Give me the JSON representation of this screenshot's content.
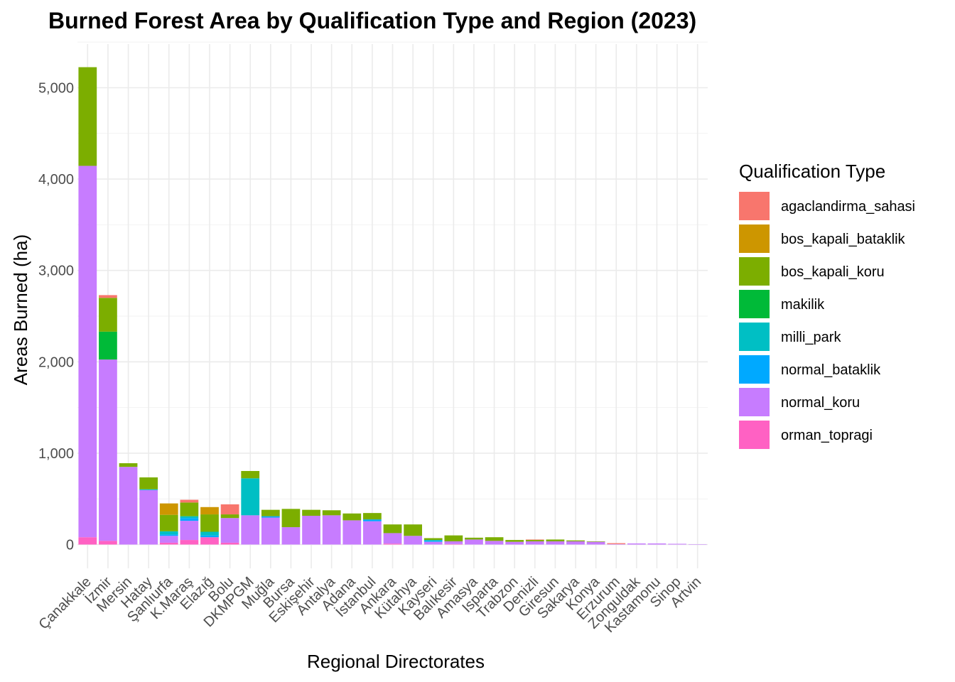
{
  "chart_data": {
    "type": "bar",
    "stacked": true,
    "title": "Burned Forest Area by Qualification Type and Region (2023)",
    "xlabel": "Regional Directorates",
    "ylabel": "Areas Burned (ha)",
    "ylim": [
      0,
      5500
    ],
    "yticks": [
      0,
      1000,
      2000,
      3000,
      4000,
      5000
    ],
    "ytick_labels": [
      "0",
      "1,000",
      "2,000",
      "3,000",
      "4,000",
      "5,000"
    ],
    "grid": true,
    "legend_title": "Qualification Type",
    "legend_position": "right",
    "categories": [
      "Çanakkale",
      "İzmir",
      "Mersin",
      "Hatay",
      "Şanlıurfa",
      "K.Maraş",
      "Elazığ",
      "Bolu",
      "DKMPGM",
      "Muğla",
      "Bursa",
      "Eskişehir",
      "Antalya",
      "Adana",
      "İstanbul",
      "Ankara",
      "Kütahya",
      "Kayseri",
      "Balıkesir",
      "Amasya",
      "Isparta",
      "Trabzon",
      "Denizli",
      "Giresun",
      "Sakarya",
      "Konya",
      "Erzurum",
      "Zonguldak",
      "Kastamonu",
      "Sinop",
      "Artvin"
    ],
    "series": [
      {
        "name": "orman_topragi",
        "color": "#FF61C3",
        "values": [
          80,
          40,
          0,
          0,
          20,
          50,
          80,
          20,
          0,
          0,
          0,
          0,
          0,
          0,
          0,
          10,
          0,
          0,
          5,
          0,
          0,
          0,
          0,
          0,
          0,
          0,
          0,
          0,
          0,
          0,
          0
        ]
      },
      {
        "name": "normal_koru",
        "color": "#C77CFF",
        "values": [
          4065,
          1985,
          850,
          595,
          75,
          210,
          0,
          270,
          320,
          295,
          190,
          315,
          320,
          265,
          255,
          115,
          95,
          30,
          30,
          55,
          40,
          30,
          35,
          35,
          35,
          30,
          5,
          12,
          12,
          8,
          3
        ]
      },
      {
        "name": "normal_bataklik",
        "color": "#00A9FF",
        "values": [
          0,
          0,
          0,
          5,
          15,
          30,
          20,
          0,
          0,
          15,
          0,
          0,
          0,
          0,
          20,
          0,
          0,
          10,
          0,
          0,
          0,
          0,
          0,
          0,
          0,
          0,
          0,
          0,
          0,
          0,
          0
        ]
      },
      {
        "name": "milli_park",
        "color": "#00BFC4",
        "values": [
          0,
          0,
          0,
          5,
          35,
          20,
          40,
          0,
          405,
          0,
          0,
          0,
          0,
          0,
          0,
          0,
          0,
          10,
          0,
          0,
          0,
          0,
          0,
          0,
          0,
          0,
          0,
          0,
          0,
          0,
          0
        ]
      },
      {
        "name": "makilik",
        "color": "#00BA38",
        "values": [
          0,
          305,
          0,
          0,
          0,
          0,
          0,
          0,
          0,
          0,
          0,
          0,
          0,
          0,
          0,
          0,
          0,
          0,
          0,
          0,
          0,
          0,
          0,
          0,
          0,
          0,
          0,
          0,
          0,
          0,
          0
        ]
      },
      {
        "name": "bos_kapali_koru",
        "color": "#7CAE00",
        "values": [
          1080,
          370,
          40,
          130,
          180,
          150,
          190,
          40,
          80,
          70,
          200,
          65,
          55,
          75,
          70,
          95,
          125,
          20,
          65,
          20,
          40,
          20,
          15,
          20,
          10,
          5,
          0,
          0,
          0,
          0,
          0
        ]
      },
      {
        "name": "bos_kapali_bataklik",
        "color": "#CD9600",
        "values": [
          0,
          0,
          0,
          0,
          125,
          0,
          80,
          0,
          0,
          0,
          0,
          0,
          0,
          0,
          0,
          0,
          0,
          0,
          0,
          0,
          0,
          0,
          0,
          0,
          0,
          0,
          0,
          0,
          0,
          0,
          0
        ]
      },
      {
        "name": "agaclandirma_sahasi",
        "color": "#F8766D",
        "values": [
          0,
          30,
          0,
          0,
          0,
          30,
          0,
          110,
          0,
          0,
          0,
          0,
          0,
          0,
          0,
          0,
          0,
          0,
          0,
          0,
          0,
          0,
          5,
          0,
          0,
          0,
          10,
          0,
          0,
          0,
          0
        ]
      }
    ],
    "legend_order": [
      "agaclandirma_sahasi",
      "bos_kapali_bataklik",
      "bos_kapali_koru",
      "makilik",
      "milli_park",
      "normal_bataklik",
      "normal_koru",
      "orman_topragi"
    ]
  }
}
